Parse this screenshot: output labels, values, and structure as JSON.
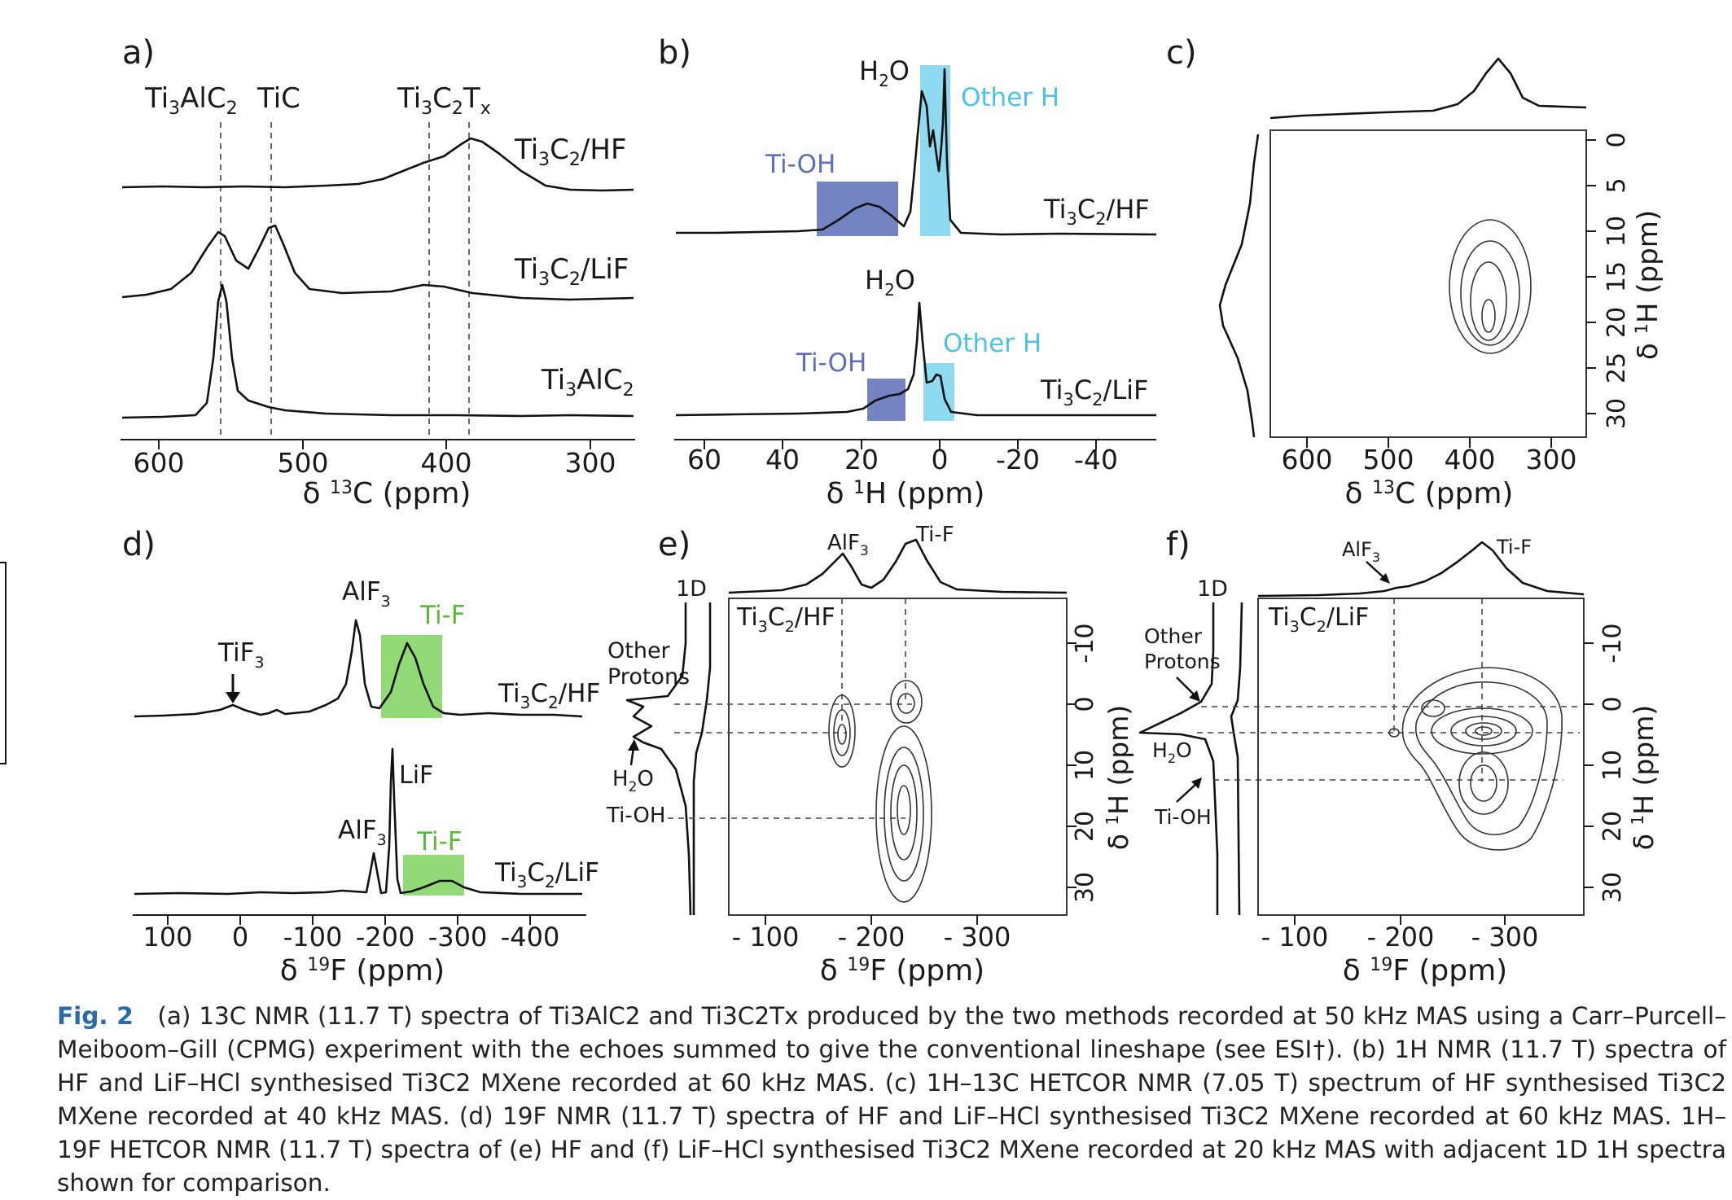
{
  "panels": {
    "a": {
      "label": "a)",
      "peak_labels": [
        "Ti3AlC2",
        "TiC",
        "Ti3C2Tx"
      ],
      "traces": [
        "Ti3C2/HF",
        "Ti3C2/LiF",
        "Ti3AlC2"
      ],
      "xticks": [
        "600",
        "500",
        "400",
        "300"
      ],
      "xlabel": "δ 13C (ppm)"
    },
    "b": {
      "label": "b)",
      "annotations": [
        "H2O",
        "Other H",
        "Ti-OH",
        "H2O",
        "Other H",
        "Ti-OH"
      ],
      "traces": [
        "Ti3C2/HF",
        "Ti3C2/LiF"
      ],
      "xticks": [
        "60",
        "40",
        "20",
        "0",
        "-20",
        "-40"
      ],
      "xlabel": "δ 1H (ppm)",
      "colors": {
        "ti_oh": "#5c6fb8",
        "other_h": "#79d4ef"
      }
    },
    "c": {
      "label": "c)",
      "xticks": [
        "600",
        "500",
        "400",
        "300"
      ],
      "yticks": [
        "0",
        "5",
        "10",
        "15",
        "20",
        "25",
        "30"
      ],
      "xlabel": "δ 13C (ppm)",
      "ylabel": "δ 1H (ppm)"
    },
    "d": {
      "label": "d)",
      "annotations": [
        "TiF3",
        "AlF3",
        "Ti-F",
        "LiF",
        "AlF3",
        "Ti-F"
      ],
      "traces": [
        "Ti3C2/HF",
        "Ti3C2/LiF"
      ],
      "xticks": [
        "100",
        "0",
        "-100",
        "-200",
        "-300",
        "-400"
      ],
      "xlabel": "δ 19F (ppm)",
      "colors": {
        "ti_f": "#7ed35f",
        "ti_f_text": "#5cb83c"
      }
    },
    "e": {
      "label": "e)",
      "sample": "Ti3C2/HF",
      "top_labels": [
        "AlF3",
        "Ti-F"
      ],
      "side_labels": [
        "1D",
        "Other Protons",
        "H2O",
        "Ti-OH"
      ],
      "xticks": [
        "- 100",
        "- 200",
        "- 300"
      ],
      "yticks": [
        "-10",
        "0",
        "10",
        "20",
        "30"
      ],
      "xlabel": "δ 19F (ppm)",
      "ylabel": "δ 1H (ppm)"
    },
    "f": {
      "label": "f)",
      "sample": "Ti3C2/LiF",
      "top_labels": [
        "AlF3",
        "Ti-F"
      ],
      "side_labels": [
        "1D",
        "Other Protons",
        "H2O",
        "Ti-OH"
      ],
      "xticks": [
        "- 100",
        "- 200",
        "- 300"
      ],
      "yticks": [
        "-10",
        "0",
        "10",
        "20",
        "30"
      ],
      "xlabel": "δ 19F (ppm)",
      "ylabel": "δ 1H (ppm)"
    }
  },
  "caption": {
    "label": "Fig. 2",
    "text": "(a) 13C NMR (11.7 T) spectra of Ti3AlC2 and Ti3C2Tx produced by the two methods recorded at 50 kHz MAS using a Carr–Purcell–Meiboom–Gill (CPMG) experiment with the echoes summed to give the conventional lineshape (see ESI†). (b) 1H NMR (11.7 T) spectra of HF and LiF–HCl synthesised Ti3C2 MXene recorded at 60 kHz MAS. (c) 1H–13C HETCOR NMR (7.05 T) spectrum of HF synthesised Ti3C2 MXene recorded at 40 kHz MAS. (d) 19F NMR (11.7 T) spectra of HF and LiF–HCl synthesised Ti3C2 MXene recorded at 60 kHz MAS. 1H–19F HETCOR NMR (11.7 T) spectra of (e) HF and (f) LiF–HCl synthesised Ti3C2 MXene recorded at 20 kHz MAS with adjacent 1D 1H spectra shown for comparison."
  }
}
